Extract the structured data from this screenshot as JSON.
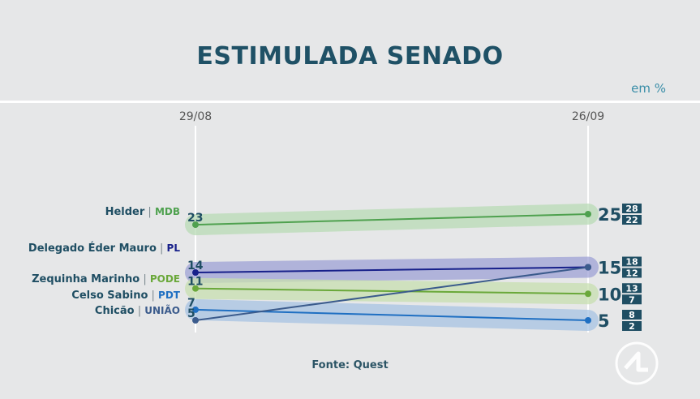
{
  "title": "ESTIMULADA SENADO",
  "unit": "em %",
  "source": "Fonte: Quest",
  "colors": {
    "text": "#1f4e63",
    "accent": "#3a8ea8",
    "mdb": "#4fa14f",
    "pl": "#17208a",
    "pode": "#6aa83a",
    "pdt": "#1f6fc2",
    "uniao": "#3b5b8c",
    "box": "#1f4e63"
  },
  "chart_data": {
    "type": "line",
    "x": [
      "29/08",
      "26/09"
    ],
    "ylim": [
      0,
      30
    ],
    "series": [
      {
        "name": "Helder",
        "party": "MDB",
        "color": "#4fa14f",
        "band": "#b9dcb6",
        "values": [
          23,
          25
        ],
        "margin": [
          "28",
          "22"
        ]
      },
      {
        "name": "Delegado Éder Mauro",
        "party": "PL",
        "color": "#17208a",
        "band": "#9fa2d6",
        "values": [
          14,
          15
        ],
        "margin": [
          "18",
          "12"
        ]
      },
      {
        "name": "Zequinha Marinho",
        "party": "PODE",
        "color": "#6aa83a",
        "band": "#c8dfb0",
        "values": [
          11,
          10
        ],
        "margin": [
          "13",
          "7"
        ]
      },
      {
        "name": "Celso Sabino",
        "party": "PDT",
        "color": "#1f6fc2",
        "band": "#a8c4e3",
        "values": [
          7,
          5
        ],
        "margin": [
          "8",
          "2"
        ]
      },
      {
        "name": "Chicão",
        "party": "UNIÃO",
        "color": "#3b5b8c",
        "band": "#a9b6cc",
        "values": [
          5,
          15
        ],
        "margin": []
      }
    ]
  }
}
